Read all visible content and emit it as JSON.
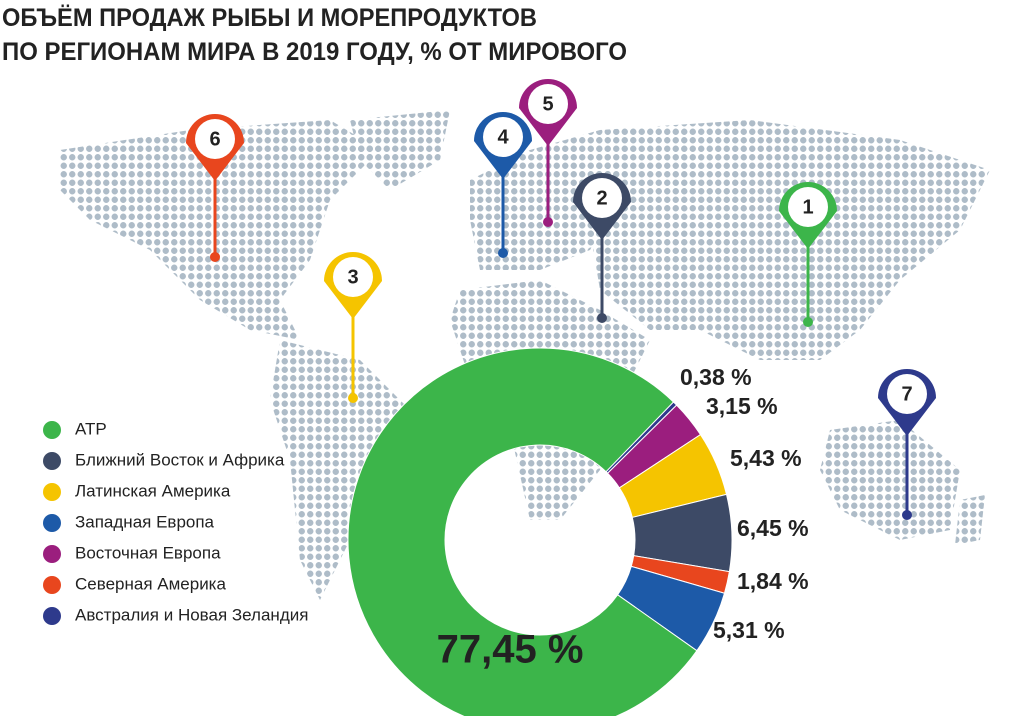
{
  "chart_data": {
    "type": "donut",
    "title": [
      "ОБЪЁМ ПРОДАЖ РЫБЫ И МОРЕПРОДУКТОВ",
      "ПО РЕГИОНАМ МИРА В 2019 ГОДУ, % ОТ МИРОВОГО"
    ],
    "categories": [
      "АТР",
      "Ближний Восток и Африка",
      "Латинская Америка",
      "Западная Европа",
      "Восточная Европа",
      "Северная Америка",
      "Австралия и Новая Зеландия"
    ],
    "values": [
      77.45,
      6.45,
      5.43,
      5.31,
      3.15,
      1.84,
      0.38
    ],
    "value_labels": [
      "77,45 %",
      "6,45 %",
      "5,43 %",
      "5,31 %",
      "3,15 %",
      "1,84 %",
      "0,38 %"
    ],
    "colors": [
      "#3cb54a",
      "#3d4a66",
      "#f5c400",
      "#1d5aa8",
      "#9b1e7e",
      "#e8461e",
      "#2e3a8c"
    ]
  },
  "pins": [
    "1",
    "2",
    "3",
    "4",
    "5",
    "6",
    "7"
  ]
}
